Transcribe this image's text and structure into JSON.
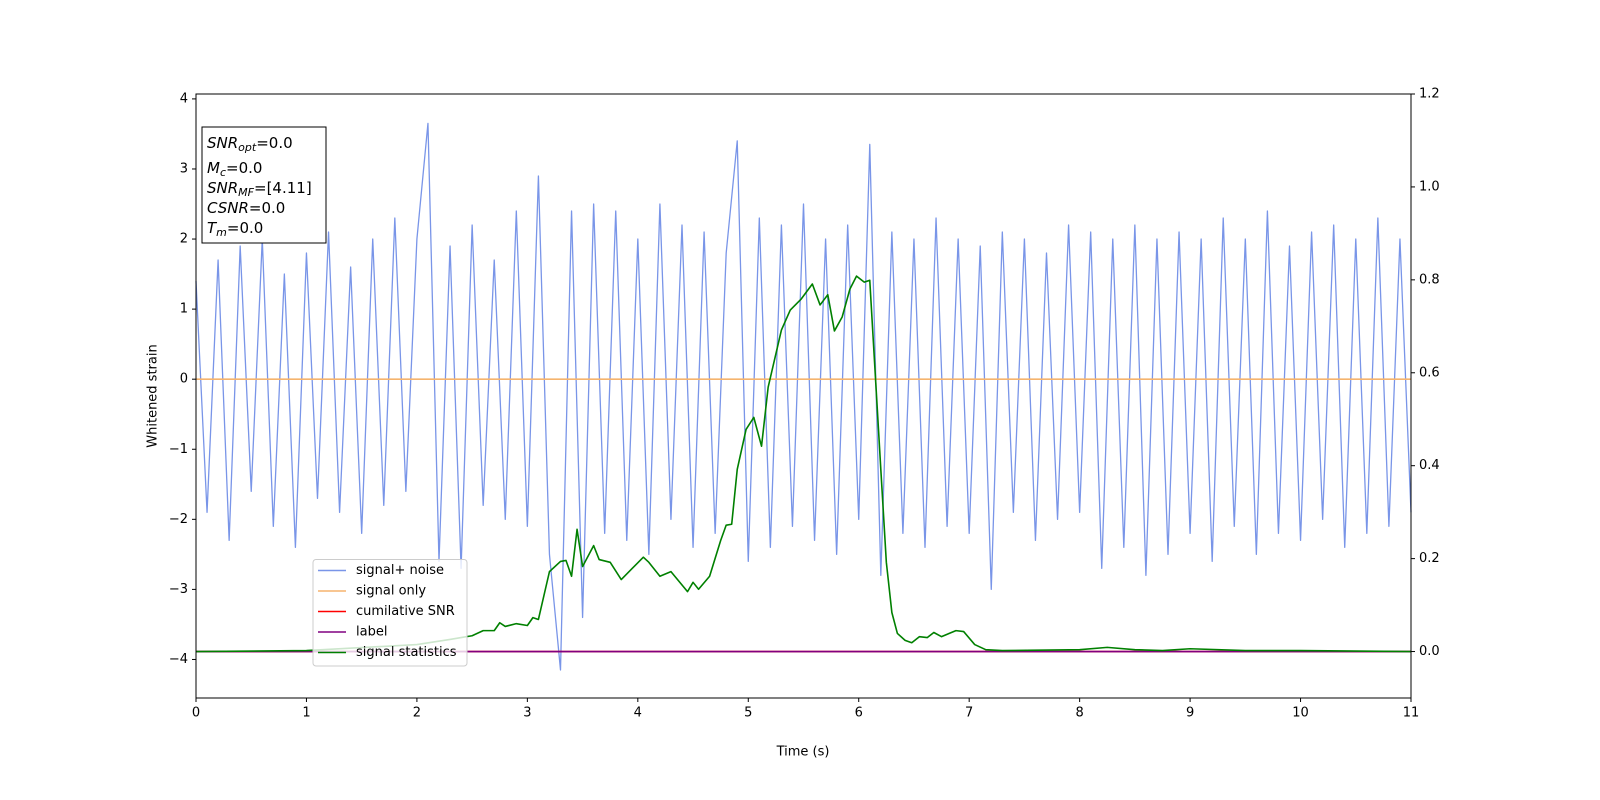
{
  "chart_data": {
    "type": "line",
    "xlabel": "Time (s)",
    "ylabel": "Whitened strain",
    "xlim": [
      0,
      11
    ],
    "xticks": [
      0,
      1,
      2,
      3,
      4,
      5,
      6,
      7,
      8,
      9,
      10,
      11
    ],
    "ylim": [
      -4.55,
      4.07
    ],
    "yticks": [
      {
        "value": -4,
        "label": "−4"
      },
      {
        "value": -3,
        "label": "−3"
      },
      {
        "value": -2,
        "label": "−2"
      },
      {
        "value": -1,
        "label": "−1"
      },
      0,
      1,
      2,
      3,
      4
    ],
    "y2lim": [
      -0.1,
      1.2
    ],
    "y2ticks": [
      {
        "value": 0,
        "label": "0.0"
      },
      {
        "value": 0.2,
        "label": "0.2"
      },
      {
        "value": 0.4,
        "label": "0.4"
      },
      {
        "value": 0.6,
        "label": "0.6"
      },
      {
        "value": 0.8,
        "label": "0.8"
      },
      {
        "value": 1,
        "label": "1.0"
      },
      {
        "value": 1.2,
        "label": "1.2"
      }
    ],
    "legend_loc": "lower left",
    "annotations": [
      {
        "symbol": "SNR",
        "subscript": "opt",
        "text": "=0.0"
      },
      {
        "symbol": "M",
        "subscript": "c",
        "text": "=0.0"
      },
      {
        "symbol": "SNR",
        "subscript": "MF",
        "text": "=[4.11]"
      },
      {
        "symbol": "CSNR",
        "text": "=0.0"
      },
      {
        "symbol": "T",
        "subscript": "m",
        "text": "=0.0"
      }
    ],
    "series": [
      {
        "name": "signal+ noise",
        "color": "#7995e8",
        "x": [
          0,
          0.1,
          0.2,
          0.3,
          0.4,
          0.5,
          0.6,
          0.7,
          0.8,
          0.9,
          1,
          1.1,
          1.2,
          1.3,
          1.4,
          1.5,
          1.6,
          1.7,
          1.8,
          1.9,
          2,
          2.1,
          2.2,
          2.3,
          2.4,
          2.5,
          2.6,
          2.7,
          2.8,
          2.9,
          3,
          3.1,
          3.2,
          3.3,
          3.4,
          3.5,
          3.6,
          3.7,
          3.8,
          3.9,
          4,
          4.1,
          4.2,
          4.3,
          4.4,
          4.5,
          4.6,
          4.7,
          4.8,
          4.9,
          5,
          5.1,
          5.2,
          5.3,
          5.4,
          5.5,
          5.6,
          5.7,
          5.8,
          5.9,
          6,
          6.1,
          6.2,
          6.3,
          6.4,
          6.5,
          6.6,
          6.7,
          6.8,
          6.9,
          7,
          7.1,
          7.2,
          7.3,
          7.4,
          7.5,
          7.6,
          7.7,
          7.8,
          7.9,
          8,
          8.1,
          8.2,
          8.3,
          8.4,
          8.5,
          8.6,
          8.7,
          8.8,
          8.9,
          9,
          9.1,
          9.2,
          9.3,
          9.4,
          9.5,
          9.6,
          9.7,
          9.8,
          9.9,
          10,
          10.1,
          10.2,
          10.3,
          10.4,
          10.5,
          10.6,
          10.7,
          10.8,
          10.9,
          11
        ],
        "values": [
          1.4,
          -1.9,
          1.7,
          -2.3,
          1.9,
          -1.6,
          2.0,
          -2.1,
          1.5,
          -2.4,
          1.8,
          -1.7,
          2.1,
          -1.9,
          1.6,
          -2.2,
          2.0,
          -1.8,
          2.3,
          -1.6,
          2.0,
          3.65,
          -2.6,
          1.9,
          -2.7,
          2.2,
          -1.8,
          1.7,
          -2.0,
          2.4,
          -2.1,
          2.9,
          -2.5,
          -4.15,
          2.4,
          -3.4,
          2.5,
          -2.2,
          2.4,
          -2.3,
          2.0,
          -2.5,
          2.5,
          -2.0,
          2.2,
          -2.4,
          2.1,
          -2.2,
          1.8,
          3.4,
          -2.6,
          2.3,
          -2.4,
          2.2,
          -2.1,
          2.5,
          -2.3,
          2.0,
          -2.5,
          2.2,
          -2.0,
          3.35,
          -2.8,
          2.1,
          -2.2,
          2.0,
          -2.4,
          2.3,
          -2.1,
          2.0,
          -2.2,
          1.9,
          -3.0,
          2.1,
          -1.9,
          2.0,
          -2.3,
          1.8,
          -2.0,
          2.2,
          -1.9,
          2.1,
          -2.7,
          2.0,
          -2.4,
          2.2,
          -2.8,
          2.0,
          -2.5,
          2.1,
          -2.2,
          2.0,
          -2.6,
          2.3,
          -2.1,
          2.0,
          -2.5,
          2.4,
          -2.2,
          1.9,
          -2.3,
          2.1,
          -2.0,
          2.2,
          -2.4,
          2.0,
          -2.2,
          2.3,
          -2.1,
          2.0,
          -1.9
        ]
      },
      {
        "name": "signal only",
        "color": "#f5b46e",
        "x": [
          0,
          11
        ],
        "values": [
          0,
          0
        ]
      },
      {
        "name": "cumilative SNR",
        "color": "#ff0000",
        "axis": "y2",
        "x": [
          0,
          11
        ],
        "values": [
          0,
          0
        ]
      },
      {
        "name": "label",
        "color": "#800080",
        "axis": "y2",
        "x": [
          0,
          11
        ],
        "values": [
          0,
          0
        ]
      },
      {
        "name": "signal statistics",
        "color": "#008000",
        "axis": "y2",
        "x": [
          0,
          1,
          2,
          2.3,
          2.4,
          2.5,
          2.6,
          2.7,
          2.75,
          2.8,
          2.9,
          3.0,
          3.05,
          3.1,
          3.2,
          3.3,
          3.35,
          3.4,
          3.45,
          3.5,
          3.6,
          3.65,
          3.75,
          3.85,
          3.95,
          4.05,
          4.1,
          4.2,
          4.3,
          4.45,
          4.5,
          4.55,
          4.65,
          4.75,
          4.8,
          4.85,
          4.9,
          4.98,
          5.05,
          5.12,
          5.18,
          5.3,
          5.38,
          5.48,
          5.58,
          5.65,
          5.72,
          5.78,
          5.85,
          5.92,
          5.98,
          6.05,
          6.1,
          6.2,
          6.25,
          6.3,
          6.35,
          6.42,
          6.48,
          6.55,
          6.62,
          6.68,
          6.75,
          6.82,
          6.88,
          6.95,
          7.05,
          7.15,
          7.3,
          8.0,
          8.25,
          8.5,
          8.75,
          9.0,
          9.5,
          10,
          11
        ],
        "values": [
          0,
          0.002,
          0.015,
          0.026,
          0.03,
          0.034,
          0.045,
          0.045,
          0.062,
          0.054,
          0.06,
          0.056,
          0.073,
          0.069,
          0.172,
          0.194,
          0.196,
          0.162,
          0.263,
          0.183,
          0.228,
          0.198,
          0.192,
          0.155,
          0.179,
          0.203,
          0.192,
          0.162,
          0.172,
          0.129,
          0.149,
          0.134,
          0.162,
          0.239,
          0.272,
          0.274,
          0.392,
          0.478,
          0.504,
          0.442,
          0.569,
          0.692,
          0.735,
          0.759,
          0.791,
          0.746,
          0.768,
          0.69,
          0.72,
          0.78,
          0.808,
          0.795,
          0.799,
          0.392,
          0.192,
          0.084,
          0.039,
          0.024,
          0.019,
          0.032,
          0.03,
          0.041,
          0.032,
          0.039,
          0.045,
          0.043,
          0.015,
          0.004,
          0.002,
          0.004,
          0.009,
          0.004,
          0.002,
          0.006,
          0.002,
          0.002,
          0
        ]
      }
    ]
  }
}
